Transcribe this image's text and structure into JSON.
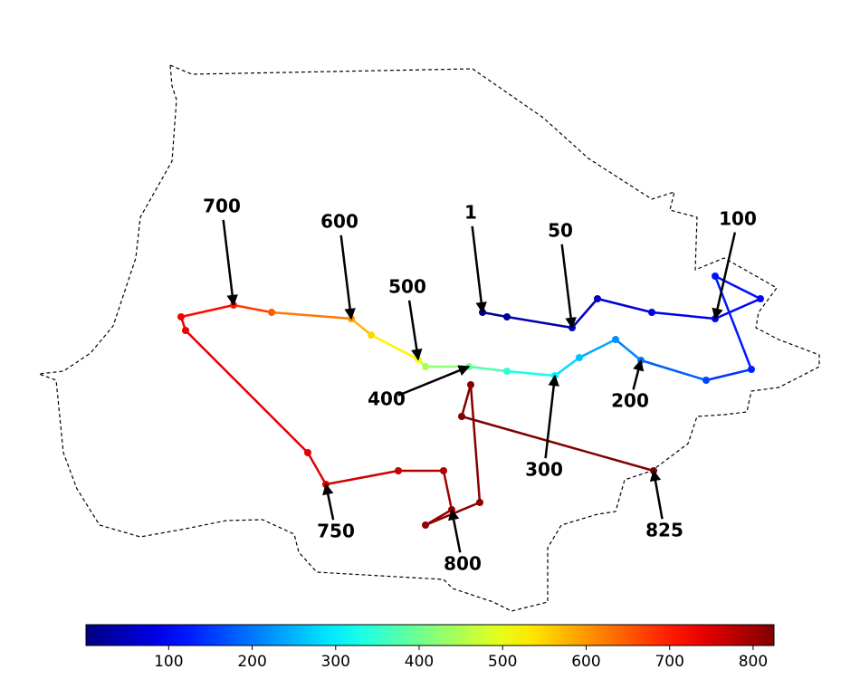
{
  "chart_data": {
    "type": "trajectory",
    "xlim": [
      0,
      950
    ],
    "ylim": [
      750,
      0
    ],
    "trajectory": {
      "index": [
        1,
        20,
        50,
        60,
        80,
        100,
        110,
        120,
        130,
        160,
        200,
        220,
        260,
        300,
        350,
        400,
        450,
        500,
        550,
        600,
        650,
        700,
        730,
        740,
        745,
        750,
        770,
        790,
        800,
        810,
        815,
        820,
        822,
        825
      ],
      "x": [
        533,
        560,
        632,
        660,
        720,
        790,
        840,
        790,
        830,
        780,
        708,
        680,
        640,
        613,
        560,
        518,
        470,
        462,
        410,
        388,
        300,
        258,
        200,
        205,
        340,
        360,
        440,
        490,
        499,
        470,
        530,
        520,
        510,
        722
      ],
      "y": [
        345,
        350,
        362,
        330,
        345,
        352,
        330,
        305,
        408,
        420,
        398,
        375,
        395,
        415,
        410,
        405,
        405,
        397,
        370,
        352,
        345,
        337,
        350,
        365,
        500,
        535,
        520,
        520,
        563,
        580,
        555,
        425,
        460,
        520
      ]
    },
    "annotations": [
      1,
      50,
      100,
      200,
      300,
      400,
      500,
      600,
      700,
      750,
      800,
      825
    ],
    "colorbar": {
      "lim": [
        1,
        825
      ],
      "ticks": [
        100,
        200,
        300,
        400,
        500,
        600,
        700,
        800
      ]
    }
  }
}
